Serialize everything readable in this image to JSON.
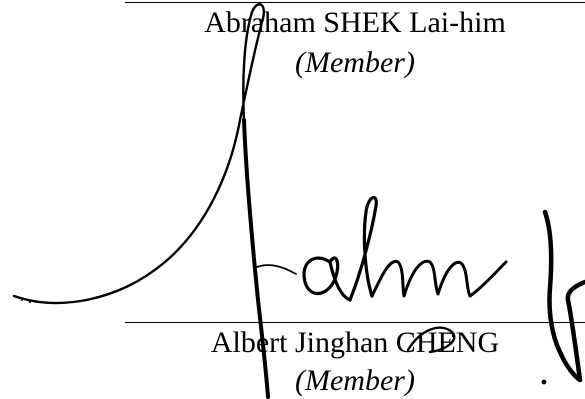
{
  "signatories": [
    {
      "name": "Abraham SHEK Lai-him",
      "role": "(Member)"
    },
    {
      "name": "Albert Jinghan CHENG",
      "role": "(Member)"
    }
  ],
  "colors": {
    "ink": "#000000",
    "paper": "#ffffff"
  }
}
